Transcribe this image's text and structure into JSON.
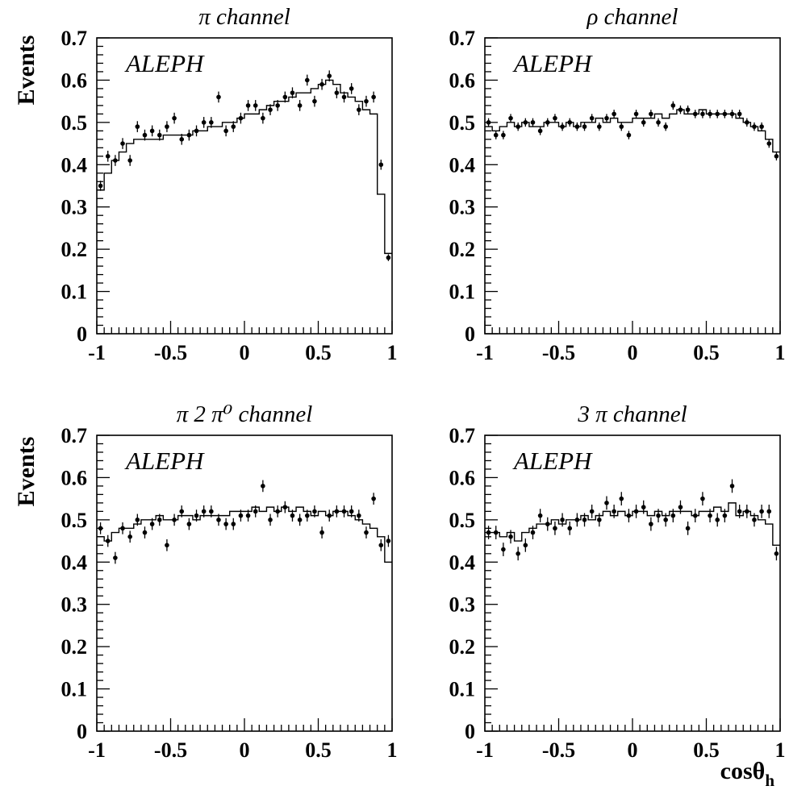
{
  "figure": {
    "ylabel": "Events",
    "xlabel": "cosθ",
    "xlabel_subscript": "h",
    "experiment_label": "ALEPH"
  },
  "chart_data": [
    {
      "type": "scatter",
      "title": "π channel",
      "xlabel": "",
      "ylabel": "Events",
      "xlim": [
        -1,
        1
      ],
      "ylim": [
        0,
        0.7
      ],
      "grid": false,
      "x_ticks": [
        "-1",
        "-0.5",
        "0",
        "0.5",
        "1"
      ],
      "y_ticks": [
        "0",
        "0.1",
        "0.2",
        "0.3",
        "0.4",
        "0.5",
        "0.6",
        "0.7"
      ],
      "x": [
        -0.975,
        -0.925,
        -0.875,
        -0.825,
        -0.775,
        -0.725,
        -0.675,
        -0.625,
        -0.575,
        -0.525,
        -0.475,
        -0.425,
        -0.375,
        -0.325,
        -0.275,
        -0.225,
        -0.175,
        -0.125,
        -0.075,
        -0.025,
        0.025,
        0.075,
        0.125,
        0.175,
        0.225,
        0.275,
        0.325,
        0.375,
        0.425,
        0.475,
        0.525,
        0.575,
        0.625,
        0.675,
        0.725,
        0.775,
        0.825,
        0.875,
        0.925,
        0.975
      ],
      "data_points": [
        0.35,
        0.42,
        0.41,
        0.45,
        0.41,
        0.49,
        0.47,
        0.48,
        0.47,
        0.49,
        0.51,
        0.46,
        0.47,
        0.48,
        0.5,
        0.5,
        0.56,
        0.48,
        0.49,
        0.51,
        0.54,
        0.54,
        0.51,
        0.53,
        0.54,
        0.56,
        0.57,
        0.54,
        0.6,
        0.55,
        0.59,
        0.61,
        0.57,
        0.56,
        0.58,
        0.53,
        0.55,
        0.56,
        0.4,
        0.18
      ],
      "errors": [
        0.012,
        0.013,
        0.013,
        0.013,
        0.013,
        0.013,
        0.013,
        0.013,
        0.013,
        0.013,
        0.013,
        0.013,
        0.013,
        0.013,
        0.013,
        0.013,
        0.013,
        0.013,
        0.013,
        0.013,
        0.013,
        0.013,
        0.013,
        0.013,
        0.013,
        0.013,
        0.013,
        0.013,
        0.013,
        0.013,
        0.013,
        0.013,
        0.013,
        0.013,
        0.013,
        0.013,
        0.013,
        0.013,
        0.012,
        0.008
      ],
      "histogram": [
        0.34,
        0.38,
        0.41,
        0.43,
        0.45,
        0.46,
        0.46,
        0.46,
        0.46,
        0.47,
        0.47,
        0.47,
        0.47,
        0.48,
        0.48,
        0.49,
        0.49,
        0.5,
        0.5,
        0.51,
        0.52,
        0.52,
        0.53,
        0.54,
        0.55,
        0.55,
        0.56,
        0.57,
        0.57,
        0.58,
        0.59,
        0.6,
        0.59,
        0.57,
        0.56,
        0.55,
        0.53,
        0.52,
        0.33,
        0.19
      ]
    },
    {
      "type": "scatter",
      "title": "ρ channel",
      "xlabel": "",
      "ylabel": "",
      "xlim": [
        -1,
        1
      ],
      "ylim": [
        0,
        0.7
      ],
      "grid": false,
      "x_ticks": [
        "-1",
        "-0.5",
        "0",
        "0.5",
        "1"
      ],
      "y_ticks": [
        "0",
        "0.1",
        "0.2",
        "0.3",
        "0.4",
        "0.5",
        "0.6",
        "0.7"
      ],
      "x": [
        -0.975,
        -0.925,
        -0.875,
        -0.825,
        -0.775,
        -0.725,
        -0.675,
        -0.625,
        -0.575,
        -0.525,
        -0.475,
        -0.425,
        -0.375,
        -0.325,
        -0.275,
        -0.225,
        -0.175,
        -0.125,
        -0.075,
        -0.025,
        0.025,
        0.075,
        0.125,
        0.175,
        0.225,
        0.275,
        0.325,
        0.375,
        0.425,
        0.475,
        0.525,
        0.575,
        0.625,
        0.675,
        0.725,
        0.775,
        0.825,
        0.875,
        0.925,
        0.975
      ],
      "data_points": [
        0.5,
        0.47,
        0.47,
        0.51,
        0.49,
        0.5,
        0.5,
        0.48,
        0.5,
        0.51,
        0.49,
        0.5,
        0.49,
        0.49,
        0.51,
        0.49,
        0.51,
        0.52,
        0.49,
        0.47,
        0.52,
        0.5,
        0.52,
        0.5,
        0.49,
        0.54,
        0.53,
        0.53,
        0.52,
        0.52,
        0.52,
        0.52,
        0.52,
        0.52,
        0.52,
        0.5,
        0.49,
        0.49,
        0.45,
        0.42
      ],
      "errors": [
        0.01,
        0.01,
        0.01,
        0.01,
        0.01,
        0.01,
        0.01,
        0.01,
        0.01,
        0.01,
        0.01,
        0.01,
        0.01,
        0.01,
        0.01,
        0.01,
        0.01,
        0.01,
        0.01,
        0.01,
        0.01,
        0.01,
        0.01,
        0.01,
        0.01,
        0.01,
        0.01,
        0.01,
        0.01,
        0.01,
        0.01,
        0.01,
        0.01,
        0.01,
        0.01,
        0.01,
        0.01,
        0.01,
        0.01,
        0.01
      ],
      "histogram": [
        0.49,
        0.48,
        0.49,
        0.5,
        0.49,
        0.5,
        0.49,
        0.49,
        0.5,
        0.5,
        0.49,
        0.5,
        0.49,
        0.5,
        0.5,
        0.51,
        0.5,
        0.51,
        0.5,
        0.5,
        0.51,
        0.51,
        0.51,
        0.52,
        0.51,
        0.52,
        0.53,
        0.52,
        0.52,
        0.53,
        0.52,
        0.52,
        0.52,
        0.52,
        0.51,
        0.5,
        0.49,
        0.48,
        0.46,
        0.43
      ]
    },
    {
      "type": "scatter",
      "title": "π 2 π⁰ channel",
      "xlabel": "",
      "ylabel": "Events",
      "xlim": [
        -1,
        1
      ],
      "ylim": [
        0,
        0.7
      ],
      "grid": false,
      "x_ticks": [
        "-1",
        "-0.5",
        "0",
        "0.5",
        "1"
      ],
      "y_ticks": [
        "0",
        "0.1",
        "0.2",
        "0.3",
        "0.4",
        "0.5",
        "0.6",
        "0.7"
      ],
      "x": [
        -0.975,
        -0.925,
        -0.875,
        -0.825,
        -0.775,
        -0.725,
        -0.675,
        -0.625,
        -0.575,
        -0.525,
        -0.475,
        -0.425,
        -0.375,
        -0.325,
        -0.275,
        -0.225,
        -0.175,
        -0.125,
        -0.075,
        -0.025,
        0.025,
        0.075,
        0.125,
        0.175,
        0.225,
        0.275,
        0.325,
        0.375,
        0.425,
        0.475,
        0.525,
        0.575,
        0.625,
        0.675,
        0.725,
        0.775,
        0.825,
        0.875,
        0.925,
        0.975
      ],
      "data_points": [
        0.48,
        0.45,
        0.41,
        0.48,
        0.46,
        0.5,
        0.47,
        0.49,
        0.5,
        0.44,
        0.5,
        0.52,
        0.49,
        0.51,
        0.52,
        0.52,
        0.5,
        0.49,
        0.49,
        0.51,
        0.51,
        0.52,
        0.58,
        0.5,
        0.52,
        0.53,
        0.51,
        0.5,
        0.51,
        0.52,
        0.47,
        0.51,
        0.52,
        0.52,
        0.52,
        0.51,
        0.47,
        0.55,
        0.44,
        0.45
      ],
      "errors": [
        0.014,
        0.014,
        0.014,
        0.014,
        0.014,
        0.014,
        0.014,
        0.014,
        0.014,
        0.014,
        0.014,
        0.014,
        0.014,
        0.014,
        0.014,
        0.014,
        0.014,
        0.014,
        0.014,
        0.014,
        0.014,
        0.014,
        0.014,
        0.014,
        0.014,
        0.014,
        0.014,
        0.014,
        0.014,
        0.014,
        0.014,
        0.014,
        0.014,
        0.014,
        0.014,
        0.014,
        0.014,
        0.014,
        0.014,
        0.014
      ],
      "histogram": [
        0.46,
        0.45,
        0.47,
        0.48,
        0.48,
        0.49,
        0.5,
        0.5,
        0.51,
        0.5,
        0.5,
        0.51,
        0.51,
        0.5,
        0.51,
        0.51,
        0.51,
        0.51,
        0.52,
        0.52,
        0.52,
        0.53,
        0.52,
        0.53,
        0.52,
        0.53,
        0.52,
        0.53,
        0.52,
        0.51,
        0.52,
        0.51,
        0.52,
        0.52,
        0.51,
        0.5,
        0.49,
        0.48,
        0.46,
        0.4
      ]
    },
    {
      "type": "scatter",
      "title": "3 π channel",
      "xlabel": "cosθh",
      "ylabel": "",
      "xlim": [
        -1,
        1
      ],
      "ylim": [
        0,
        0.7
      ],
      "grid": false,
      "x_ticks": [
        "-1",
        "-0.5",
        "0",
        "0.5",
        "1"
      ],
      "y_ticks": [
        "0",
        "0.1",
        "0.2",
        "0.3",
        "0.4",
        "0.5",
        "0.6",
        "0.7"
      ],
      "x": [
        -0.975,
        -0.925,
        -0.875,
        -0.825,
        -0.775,
        -0.725,
        -0.675,
        -0.625,
        -0.575,
        -0.525,
        -0.475,
        -0.425,
        -0.375,
        -0.325,
        -0.275,
        -0.225,
        -0.175,
        -0.125,
        -0.075,
        -0.025,
        0.025,
        0.075,
        0.125,
        0.175,
        0.225,
        0.275,
        0.325,
        0.375,
        0.425,
        0.475,
        0.525,
        0.575,
        0.625,
        0.675,
        0.725,
        0.775,
        0.825,
        0.875,
        0.925,
        0.975
      ],
      "data_points": [
        0.47,
        0.47,
        0.43,
        0.46,
        0.42,
        0.44,
        0.47,
        0.51,
        0.49,
        0.48,
        0.5,
        0.48,
        0.5,
        0.5,
        0.52,
        0.5,
        0.54,
        0.52,
        0.55,
        0.51,
        0.52,
        0.53,
        0.49,
        0.51,
        0.5,
        0.51,
        0.53,
        0.48,
        0.51,
        0.55,
        0.51,
        0.5,
        0.51,
        0.58,
        0.52,
        0.52,
        0.5,
        0.52,
        0.52,
        0.42
      ],
      "errors": [
        0.016,
        0.016,
        0.016,
        0.016,
        0.016,
        0.016,
        0.016,
        0.016,
        0.016,
        0.016,
        0.016,
        0.016,
        0.016,
        0.016,
        0.016,
        0.016,
        0.016,
        0.016,
        0.016,
        0.016,
        0.016,
        0.016,
        0.016,
        0.016,
        0.016,
        0.016,
        0.016,
        0.016,
        0.016,
        0.016,
        0.016,
        0.016,
        0.016,
        0.016,
        0.016,
        0.016,
        0.016,
        0.016,
        0.016,
        0.016
      ],
      "histogram": [
        0.47,
        0.47,
        0.46,
        0.47,
        0.45,
        0.47,
        0.48,
        0.49,
        0.49,
        0.5,
        0.49,
        0.5,
        0.5,
        0.51,
        0.5,
        0.51,
        0.52,
        0.51,
        0.52,
        0.51,
        0.52,
        0.52,
        0.51,
        0.52,
        0.51,
        0.52,
        0.52,
        0.52,
        0.51,
        0.52,
        0.52,
        0.53,
        0.52,
        0.54,
        0.51,
        0.52,
        0.51,
        0.5,
        0.49,
        0.44
      ]
    }
  ]
}
